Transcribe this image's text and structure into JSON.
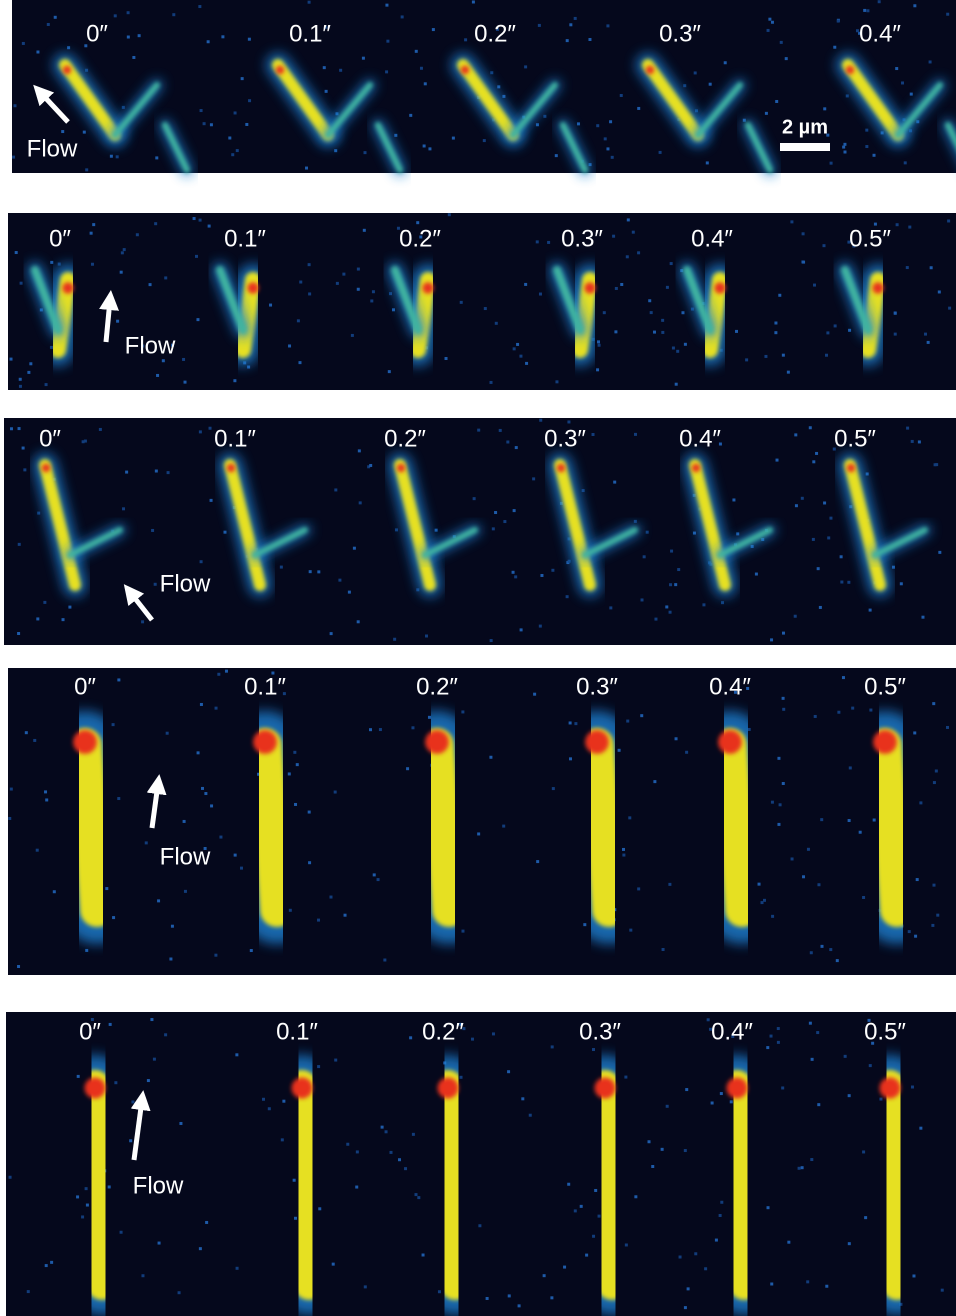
{
  "panels": [
    {
      "time_labels": [
        "0″",
        "0.1″",
        "0.2″",
        "0.3″",
        "0.4″"
      ],
      "flow_label": "Flow",
      "scale_bar": "2 µm"
    },
    {
      "time_labels": [
        "0″",
        "0.1″",
        "0.2″",
        "0.3″",
        "0.4″",
        "0.5″"
      ],
      "flow_label": "Flow"
    },
    {
      "time_labels": [
        "0″",
        "0.1″",
        "0.2″",
        "0.3″",
        "0.4″",
        "0.5″"
      ],
      "flow_label": "Flow"
    },
    {
      "time_labels": [
        "0″",
        "0.1″",
        "0.2″",
        "0.3″",
        "0.4″",
        "0.5″"
      ],
      "flow_label": "Flow"
    },
    {
      "time_labels": [
        "0″",
        "0.1″",
        "0.2″",
        "0.3″",
        "0.4″",
        "0.5″"
      ],
      "flow_label": "Flow"
    }
  ]
}
